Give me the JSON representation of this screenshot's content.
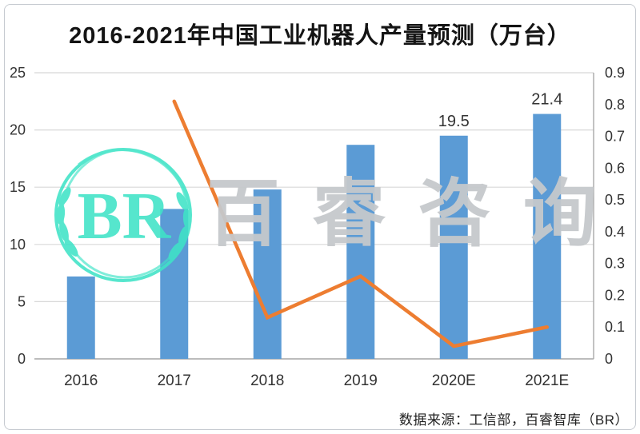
{
  "title": "2016-2021年中国工业机器人产量预测（万台）",
  "source_note": "数据来源：工信部，百睿智库（BR）",
  "watermark": {
    "logo_text": "BR",
    "brand_text": "百睿咨询",
    "logo_color": "#3FE3C7",
    "brand_color": "#C5C8CB"
  },
  "chart_data": {
    "type": "bar",
    "subtype": "bar-line-combo",
    "title": "2016-2021年中国工业机器人产量预测（万台）",
    "categories": [
      "2016",
      "2017",
      "2018",
      "2019",
      "2020E",
      "2021E"
    ],
    "series": [
      {
        "name": "production-bars",
        "type": "bar",
        "axis": "left",
        "color": "#5B9BD5",
        "values": [
          7.2,
          13.1,
          14.8,
          18.7,
          19.5,
          21.4
        ],
        "data_labels": [
          null,
          null,
          null,
          null,
          "19.5",
          "21.4"
        ]
      },
      {
        "name": "growth-rate-line",
        "type": "line",
        "axis": "right",
        "color": "#ED7D31",
        "values": [
          null,
          0.81,
          0.13,
          0.26,
          0.04,
          0.1
        ]
      }
    ],
    "left_axis": {
      "min": 0,
      "max": 25,
      "step": 5,
      "tick_labels": [
        "0",
        "5",
        "10",
        "15",
        "20",
        "25"
      ]
    },
    "right_axis": {
      "min": 0,
      "max": 0.9,
      "step": 0.1,
      "tick_labels": [
        "0",
        "0.1",
        "0.2",
        "0.3",
        "0.4",
        "0.5",
        "0.6",
        "0.7",
        "0.8",
        "0.9"
      ]
    },
    "grid": true,
    "legend": false,
    "grid_color": "#D8D8D8"
  }
}
